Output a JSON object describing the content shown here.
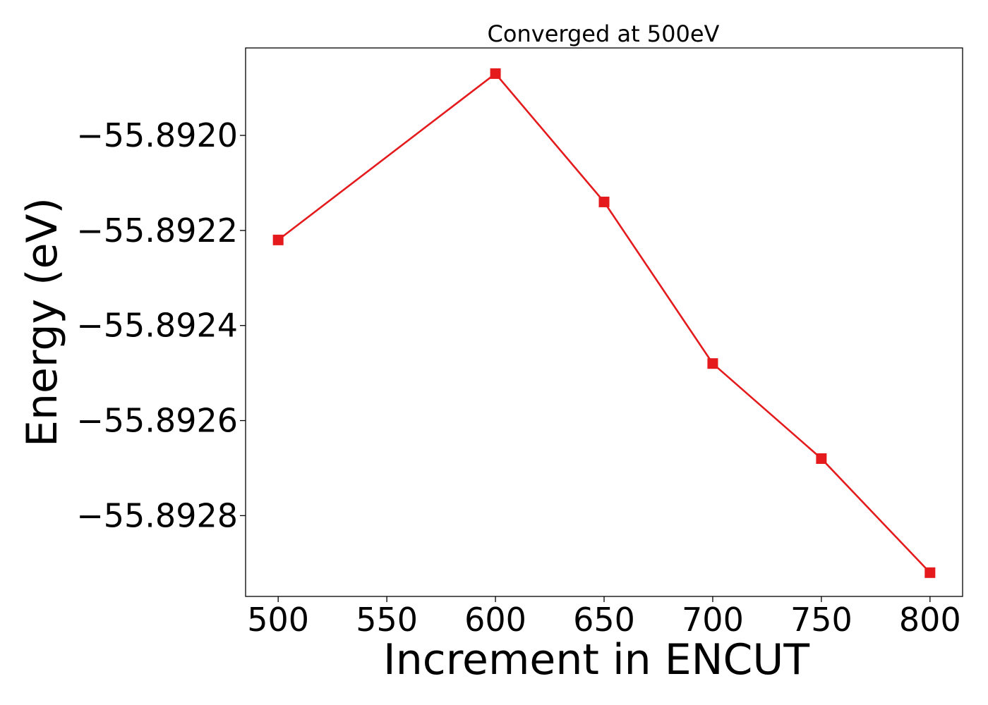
{
  "chart_data": {
    "type": "line",
    "title": "Converged at 500eV",
    "xlabel": "Increment in ENCUT",
    "ylabel": "Energy (eV)",
    "x": [
      500,
      600,
      650,
      700,
      750,
      800
    ],
    "series": [
      {
        "values": [
          -55.89222,
          -55.89187,
          -55.89214,
          -55.89248,
          -55.89268,
          -55.89292
        ],
        "color": "#e41a1c",
        "marker": "square"
      }
    ],
    "xlim": [
      485,
      815
    ],
    "ylim": [
      -55.89297,
      -55.891816
    ],
    "xticks": [
      500,
      550,
      600,
      650,
      700,
      750,
      800
    ],
    "xtick_labels": [
      "500",
      "550",
      "600",
      "650",
      "700",
      "750",
      "800"
    ],
    "yticks": [
      -55.892,
      -55.8922,
      -55.8924,
      -55.8926,
      -55.8928
    ],
    "ytick_labels": [
      "−55.8920",
      "−55.8922",
      "−55.8924",
      "−55.8926",
      "−55.8928"
    ],
    "grid": false,
    "legend": "none"
  }
}
